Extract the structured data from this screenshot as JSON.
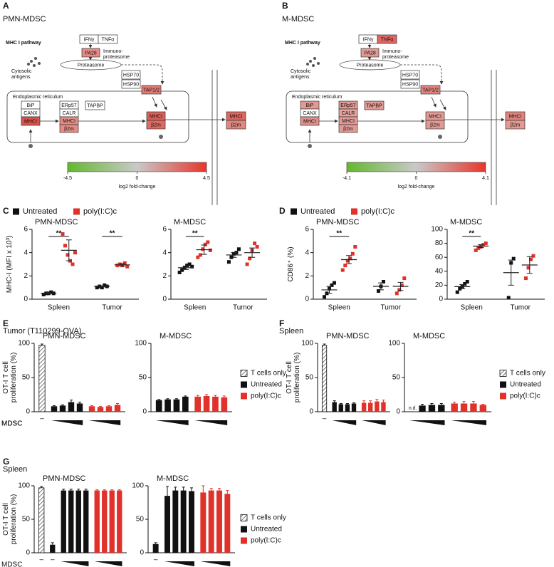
{
  "diagrams": [
    {
      "panel_label": "A",
      "title": "PMN-MDSC",
      "pathway": "MHC I pathway",
      "nodes": [
        {
          "label": "IFNγ",
          "color": "#ffffff"
        },
        {
          "label": "TNFα",
          "color": "#ffffff"
        },
        {
          "label": "PA28",
          "color": "#e58c86"
        },
        {
          "label": [
            "Immuno-",
            "proteasome"
          ]
        },
        {
          "label": [
            "Cytosolic",
            "antigens"
          ]
        },
        {
          "label": "Proteasome",
          "color": "#ffffff"
        },
        {
          "label": "HSP70",
          "color": "#ffffff"
        },
        {
          "label": "HSP90",
          "color": "#ffffff"
        },
        {
          "label": "TAP1/2",
          "color": "#e07b74"
        },
        {
          "label": "Endoplasmic reticulum"
        },
        {
          "label": "BiP",
          "color": "#ffffff"
        },
        {
          "label": "CANX",
          "color": "#ffffff"
        },
        {
          "label": "MHCI",
          "color": "#d9534c"
        },
        {
          "label": "ERp57",
          "color": "#ffffff"
        },
        {
          "label": "CALR",
          "color": "#ffffff"
        },
        {
          "label": "MHCI",
          "color": "#e58c86"
        },
        {
          "label": "β2m",
          "color": "#e58c86"
        },
        {
          "label": "TAPBP",
          "color": "#ffffff"
        },
        {
          "label": "MHCI",
          "color": "#d9605a"
        },
        {
          "label": "β2m",
          "color": "#dd6b64"
        },
        {
          "label": "MHCI",
          "color": "#dc6660"
        },
        {
          "label": "β2m",
          "color": "#e08880"
        }
      ],
      "colorbar": {
        "min": -4.5,
        "max": 4.5,
        "ticks": [
          -4.5,
          0,
          4.5
        ],
        "label": "log2 fold-change",
        "colors": [
          "#63b82e",
          "#c9c9c9",
          "#e8352a"
        ]
      }
    },
    {
      "panel_label": "B",
      "title": "M-MDSC",
      "pathway": "MHC I pathway",
      "nodes": [
        {
          "label": "IFNγ",
          "color": "#ffffff"
        },
        {
          "label": "TNFα",
          "color": "#e0665f"
        },
        {
          "label": "PA28",
          "color": "#e39a94"
        },
        {
          "label": [
            "Immuno-",
            "proteasome"
          ]
        },
        {
          "label": [
            "Cytosolic",
            "antigens"
          ]
        },
        {
          "label": "Proteasome",
          "color": "#ffffff"
        },
        {
          "label": "HSP70",
          "color": "#ffffff"
        },
        {
          "label": "HSP90",
          "color": "#ffffff"
        },
        {
          "label": "TAP1/2",
          "color": "#e0847d"
        },
        {
          "label": "Endoplasmic reticulum"
        },
        {
          "label": "BiP",
          "color": "#e39a94"
        },
        {
          "label": "CANX",
          "color": "#ffffff"
        },
        {
          "label": "MHCI",
          "color": "#e0908a"
        },
        {
          "label": "ERp57",
          "color": "#e39a94"
        },
        {
          "label": "CALR",
          "color": "#e6a39e"
        },
        {
          "label": "MHCI",
          "color": "#e39a94"
        },
        {
          "label": "β2m",
          "color": "#e39a94"
        },
        {
          "label": "TAPBP",
          "color": "#e39a94"
        },
        {
          "label": "MHCI",
          "color": "#e39a94"
        },
        {
          "label": "β2m",
          "color": "#e39a94"
        },
        {
          "label": "MHCI",
          "color": "#e0847d"
        },
        {
          "label": "β2m",
          "color": "#e39a94"
        }
      ],
      "colorbar": {
        "min": -4.1,
        "max": 4.1,
        "ticks": [
          -4.1,
          0,
          4.1
        ],
        "label": "log2 fold-change",
        "colors": [
          "#63b82e",
          "#c9c9c9",
          "#e8352a"
        ]
      }
    }
  ],
  "chart_data": [
    {
      "type": "scatter",
      "panel_label": "C",
      "title": "PMN-MDSC",
      "ylabel": "MHC-I (MFI x 10³)",
      "categories": [
        "Spleen",
        "Tumor"
      ],
      "ylim": [
        0,
        6
      ],
      "yticks": [
        0,
        2,
        4,
        6
      ],
      "series": [
        {
          "name": "Untreated",
          "color": "#111111",
          "values": [
            [
              0.4,
              0.5,
              0.5,
              0.6,
              0.5
            ],
            [
              1.0,
              1.1,
              1.0,
              1.2,
              1.1
            ]
          ],
          "means": [
            0.5,
            1.1
          ],
          "sems": [
            0.05,
            0.05
          ]
        },
        {
          "name": "poly(I:C)c",
          "color": "#e0312b",
          "values": [
            [
              5.6,
              4.6,
              3.8,
              3.3,
              3.0,
              4.0
            ],
            [
              2.9,
              3.0,
              2.9,
              3.1,
              2.8
            ]
          ],
          "means": [
            4.2,
            2.95
          ],
          "sems": [
            0.9,
            0.1
          ]
        }
      ],
      "annotations": [
        {
          "category": 0,
          "text": "**"
        },
        {
          "category": 1,
          "text": "**"
        }
      ]
    },
    {
      "type": "scatter",
      "title": "M-MDSC",
      "categories": [
        "Spleen",
        "Tumor"
      ],
      "ylim": [
        0,
        6
      ],
      "yticks": [
        0,
        2,
        4,
        6
      ],
      "series": [
        {
          "color": "#111111",
          "values": [
            [
              2.3,
              2.5,
              2.7,
              2.9,
              3.0,
              2.8
            ],
            [
              3.2,
              3.6,
              3.9,
              4.0,
              4.3
            ]
          ],
          "means": [
            2.7,
            3.8
          ],
          "sems": [
            0.15,
            0.2
          ]
        },
        {
          "color": "#e0312b",
          "values": [
            [
              3.6,
              3.8,
              4.3,
              4.7,
              4.9,
              4.2
            ],
            [
              3.0,
              3.5,
              4.2,
              4.8,
              4.5
            ]
          ],
          "means": [
            4.25,
            4.0
          ],
          "sems": [
            0.4,
            0.4
          ]
        }
      ],
      "annotations": [
        {
          "category": 0,
          "text": "**"
        }
      ]
    },
    {
      "type": "scatter",
      "panel_label": "D",
      "title": "PMN-MDSC",
      "ylabel": "CD86⁺ (%)",
      "categories": [
        "Spleen",
        "Tumor"
      ],
      "ylim": [
        0,
        6
      ],
      "yticks": [
        0,
        2,
        4,
        6
      ],
      "series": [
        {
          "name": "Untreated",
          "color": "#111111",
          "values": [
            [
              0.2,
              0.5,
              0.9,
              1.2,
              1.4
            ],
            [
              0.7,
              1.1,
              1.5
            ]
          ],
          "means": [
            0.8,
            1.1
          ],
          "sems": [
            0.3,
            0.3
          ]
        },
        {
          "name": "poly(I:C)c",
          "color": "#e0312b",
          "values": [
            [
              2.5,
              2.9,
              3.3,
              3.5,
              3.9,
              4.5
            ],
            [
              0.5,
              0.8,
              1.2,
              1.8
            ]
          ],
          "means": [
            3.4,
            1.1
          ],
          "sems": [
            0.35,
            0.35
          ]
        }
      ],
      "annotations": [
        {
          "category": 0,
          "text": "**"
        }
      ]
    },
    {
      "type": "scatter",
      "title": "M-MDSC",
      "categories": [
        "Spleen",
        "Tumor"
      ],
      "ylim": [
        0,
        100
      ],
      "yticks": [
        0,
        20,
        40,
        60,
        80,
        100
      ],
      "series": [
        {
          "color": "#111111",
          "values": [
            [
              10,
              15,
              18,
              22,
              25
            ],
            [
              2,
              52,
              58
            ]
          ],
          "means": [
            18,
            38
          ],
          "sems": [
            3,
            18
          ]
        },
        {
          "color": "#e0312b",
          "values": [
            [
              70,
              73,
              75,
              78,
              80
            ],
            [
              30,
              45,
              57,
              62
            ]
          ],
          "means": [
            76,
            49
          ],
          "sems": [
            2,
            12
          ]
        }
      ],
      "annotations": [
        {
          "category": 0,
          "text": "**"
        }
      ]
    },
    {
      "type": "bar",
      "panel_label": "E",
      "panel_title": "Tumor (T110299-OVA)",
      "title": "PMN-MDSC",
      "ylabel": [
        "OT-I T cell",
        "proliferation (%)"
      ],
      "xlabel": "MDSC",
      "ylim": [
        0,
        100
      ],
      "yticks": [
        0,
        50,
        100
      ],
      "categories": [
        "–",
        null,
        null,
        null,
        null,
        null,
        null,
        null,
        null
      ],
      "series": [
        {
          "name": "T cells only",
          "color": "#ffffff",
          "pattern": "hatch",
          "values": [
            97,
            null,
            null,
            null,
            null,
            null,
            null,
            null,
            null
          ],
          "errors": [
            2,
            null,
            null,
            null,
            null,
            null,
            null,
            null,
            null
          ]
        },
        {
          "name": "Untreated",
          "color": "#111111",
          "values": [
            null,
            8,
            9,
            14,
            12,
            null,
            null,
            null,
            null
          ],
          "errors": [
            null,
            1,
            1,
            3,
            2,
            null,
            null,
            null,
            null
          ]
        },
        {
          "name": "poly(I:C)c",
          "color": "#e0312b",
          "values": [
            null,
            null,
            null,
            null,
            null,
            8,
            7,
            8,
            10
          ],
          "errors": [
            null,
            null,
            null,
            null,
            null,
            1,
            1,
            1,
            2
          ]
        }
      ]
    },
    {
      "type": "bar",
      "title": "M-MDSC",
      "ylim": [
        0,
        100
      ],
      "yticks": [
        0,
        50,
        100
      ],
      "categories": [
        null,
        null,
        null,
        null,
        null,
        null,
        null,
        null
      ],
      "series": [
        {
          "color": "#111111",
          "values": [
            17,
            18,
            18,
            22,
            null,
            null,
            null,
            null
          ],
          "errors": [
            1,
            1,
            1,
            1,
            null,
            null,
            null,
            null
          ]
        },
        {
          "color": "#e0312b",
          "values": [
            null,
            null,
            null,
            null,
            22,
            23,
            22,
            21
          ],
          "errors": [
            null,
            null,
            null,
            null,
            2,
            2,
            2,
            2
          ]
        }
      ]
    },
    {
      "type": "bar",
      "panel_label": "F",
      "panel_title": "Spleen",
      "title": "PMN-MDSC",
      "ylabel": [
        "OT-I T cell",
        "proliferation (%)"
      ],
      "xlabel": "MDSC",
      "ylim": [
        0,
        100
      ],
      "yticks": [
        0,
        50,
        100
      ],
      "categories": [
        "–",
        null,
        null,
        null,
        null,
        null,
        null,
        null,
        null
      ],
      "series": [
        {
          "name": "T cells only",
          "color": "#ffffff",
          "pattern": "hatch",
          "values": [
            97,
            null,
            null,
            null,
            null,
            null,
            null,
            null,
            null
          ],
          "errors": [
            2,
            null,
            null,
            null,
            null,
            null,
            null,
            null,
            null
          ]
        },
        {
          "name": "Untreated",
          "color": "#111111",
          "values": [
            null,
            14,
            11,
            11,
            12,
            null,
            null,
            null,
            null
          ],
          "errors": [
            null,
            2,
            1,
            1,
            1,
            null,
            null,
            null,
            null
          ]
        },
        {
          "name": "poly(I:C)c",
          "color": "#e0312b",
          "values": [
            null,
            null,
            null,
            null,
            null,
            13,
            13,
            15,
            14
          ],
          "errors": [
            null,
            null,
            null,
            null,
            null,
            3,
            3,
            3,
            3
          ]
        }
      ]
    },
    {
      "type": "bar",
      "title": "M-MDSC",
      "ylim": [
        0,
        100
      ],
      "yticks": [
        0,
        50,
        100
      ],
      "categories": [
        null,
        null,
        null,
        null,
        null,
        null,
        null,
        null
      ],
      "series": [
        {
          "color": "#111111",
          "values": [
            null,
            9,
            10,
            10,
            null,
            null,
            null,
            null
          ],
          "errors": [
            null,
            2,
            2,
            2,
            null,
            null,
            null,
            null
          ]
        },
        {
          "color": "#e0312b",
          "values": [
            null,
            null,
            null,
            null,
            12,
            12,
            12,
            10
          ],
          "errors": [
            null,
            null,
            null,
            null,
            2,
            3,
            3,
            1
          ]
        }
      ],
      "annotations": [
        {
          "series": 0,
          "index": 0,
          "text": "n.d."
        }
      ]
    },
    {
      "type": "bar",
      "panel_label": "G",
      "panel_title": "Spleen",
      "title": "PMN-MDSC",
      "ylabel": [
        "OT-I T cell",
        "proliferation (%)"
      ],
      "xlabel": "MDSC",
      "ylim": [
        0,
        100
      ],
      "yticks": [
        0,
        50,
        100
      ],
      "categories": [
        "–",
        "–",
        null,
        null,
        null,
        null,
        null,
        null,
        null,
        null
      ],
      "series": [
        {
          "name": "T cells only",
          "color": "#ffffff",
          "pattern": "hatch",
          "values": [
            97,
            null,
            null,
            null,
            null,
            null,
            null,
            null,
            null,
            null
          ],
          "errors": [
            2,
            null,
            null,
            null,
            null,
            null,
            null,
            null,
            null,
            null
          ]
        },
        {
          "name": "Untreated",
          "color": "#111111",
          "values": [
            null,
            12,
            93,
            93,
            93,
            93,
            null,
            null,
            null,
            null
          ],
          "errors": [
            null,
            3,
            2,
            2,
            2,
            2,
            null,
            null,
            null,
            null
          ]
        },
        {
          "name": "poly(I:C)c",
          "color": "#e0312b",
          "values": [
            null,
            null,
            null,
            null,
            null,
            null,
            93,
            93,
            93,
            93
          ],
          "errors": [
            null,
            null,
            null,
            null,
            null,
            null,
            1,
            1,
            1,
            1
          ]
        }
      ]
    },
    {
      "type": "bar",
      "title": "M-MDSC",
      "ylim": [
        0,
        100
      ],
      "yticks": [
        0,
        50,
        100
      ],
      "categories": [
        "–",
        null,
        null,
        null,
        null,
        null,
        null,
        null,
        null
      ],
      "series": [
        {
          "color": "#111111",
          "values": [
            13,
            85,
            93,
            93,
            92,
            null,
            null,
            null,
            null
          ],
          "errors": [
            2,
            14,
            5,
            5,
            5,
            null,
            null,
            null,
            null
          ]
        },
        {
          "color": "#e0312b",
          "values": [
            null,
            null,
            null,
            null,
            null,
            90,
            93,
            93,
            88
          ],
          "errors": [
            null,
            null,
            null,
            null,
            null,
            10,
            3,
            3,
            5
          ]
        }
      ]
    }
  ]
}
